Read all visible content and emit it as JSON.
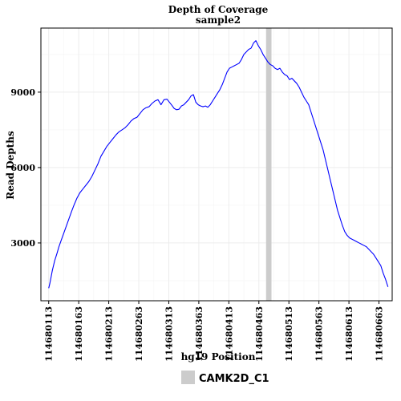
{
  "chart_data": {
    "type": "line",
    "title": "Depth of Coverage",
    "subtitle": "sample2",
    "xlabel": "hg19 Position",
    "ylabel": "Read Depths",
    "xlim": [
      114680100,
      114680685
    ],
    "ylim": [
      700,
      11550
    ],
    "x_ticks": [
      114680113,
      114680163,
      114680213,
      114680263,
      114680313,
      114680363,
      114680413,
      114680463,
      114680513,
      114680563,
      114680613,
      114680663
    ],
    "y_ticks": [
      3000,
      6000,
      9000
    ],
    "grid": true,
    "legend_position": "bottom",
    "line_color": "#0000ff",
    "highlight_region": {
      "name": "CAMK2D_C1",
      "x_start": 114680475,
      "x_end": 114680484,
      "color": "#cccccc"
    },
    "legend": [
      {
        "label": "CAMK2D_C1",
        "color": "#cccccc"
      }
    ],
    "series": [
      {
        "x": [
          114680113,
          114680115,
          114680117,
          114680119,
          114680121,
          114680123,
          114680125,
          114680127,
          114680130,
          114680133,
          114680136,
          114680139,
          114680142,
          114680145,
          114680148,
          114680151,
          114680155,
          114680160,
          114680165,
          114680170,
          114680175,
          114680180,
          114680185,
          114680190,
          114680195,
          114680200,
          114680205,
          114680210,
          114680215,
          114680220,
          114680225,
          114680230,
          114680235,
          114680240,
          114680245,
          114680250,
          114680255,
          114680260,
          114680265,
          114680270,
          114680275,
          114680280,
          114680285,
          114680290,
          114680295,
          114680300,
          114680305,
          114680310,
          114680314,
          114680318,
          114680322,
          114680326,
          114680330,
          114680334,
          114680338,
          114680342,
          114680346,
          114680350,
          114680354,
          114680358,
          114680362,
          114680366,
          114680370,
          114680374,
          114680378,
          114680382,
          114680386,
          114680390,
          114680394,
          114680398,
          114680402,
          114680406,
          114680410,
          114680414,
          114680418,
          114680422,
          114680426,
          114680430,
          114680434,
          114680438,
          114680442,
          114680446,
          114680450,
          114680454,
          114680458,
          114680462,
          114680466,
          114680470,
          114680474,
          114680478,
          114680482,
          114680486,
          114680490,
          114680494,
          114680498,
          114680502,
          114680506,
          114680510,
          114680514,
          114680518,
          114680522,
          114680526,
          114680530,
          114680534,
          114680538,
          114680542,
          114680546,
          114680550,
          114680554,
          114680558,
          114680562,
          114680566,
          114680570,
          114680574,
          114680578,
          114680582,
          114680586,
          114680590,
          114680594,
          114680598,
          114680602,
          114680606,
          114680610,
          114680614,
          114680618,
          114680622,
          114680626,
          114680630,
          114680634,
          114680638,
          114680642,
          114680646,
          114680650,
          114680654,
          114680658,
          114680662,
          114680666,
          114680670,
          114680674,
          114680678
        ],
        "values": [
          1200,
          1400,
          1650,
          1900,
          2100,
          2300,
          2450,
          2600,
          2850,
          3050,
          3250,
          3450,
          3650,
          3850,
          4050,
          4250,
          4500,
          4780,
          5000,
          5150,
          5300,
          5450,
          5650,
          5900,
          6150,
          6450,
          6650,
          6850,
          7000,
          7150,
          7300,
          7420,
          7500,
          7580,
          7700,
          7850,
          7950,
          8000,
          8150,
          8300,
          8380,
          8420,
          8550,
          8650,
          8700,
          8500,
          8700,
          8720,
          8600,
          8480,
          8350,
          8300,
          8320,
          8450,
          8500,
          8600,
          8700,
          8850,
          8900,
          8600,
          8500,
          8450,
          8420,
          8450,
          8400,
          8500,
          8650,
          8800,
          8950,
          9100,
          9300,
          9550,
          9800,
          9950,
          10000,
          10050,
          10100,
          10150,
          10300,
          10500,
          10600,
          10700,
          10750,
          10950,
          11050,
          10850,
          10700,
          10500,
          10350,
          10200,
          10100,
          10050,
          9950,
          9900,
          9950,
          9800,
          9700,
          9650,
          9500,
          9550,
          9450,
          9350,
          9200,
          9000,
          8800,
          8650,
          8500,
          8200,
          7900,
          7600,
          7300,
          7000,
          6700,
          6300,
          5900,
          5500,
          5100,
          4700,
          4300,
          4000,
          3700,
          3450,
          3300,
          3200,
          3150,
          3100,
          3050,
          3000,
          2950,
          2900,
          2850,
          2750,
          2650,
          2550,
          2400,
          2250,
          2100,
          1800,
          1550,
          1250
        ]
      }
    ]
  }
}
